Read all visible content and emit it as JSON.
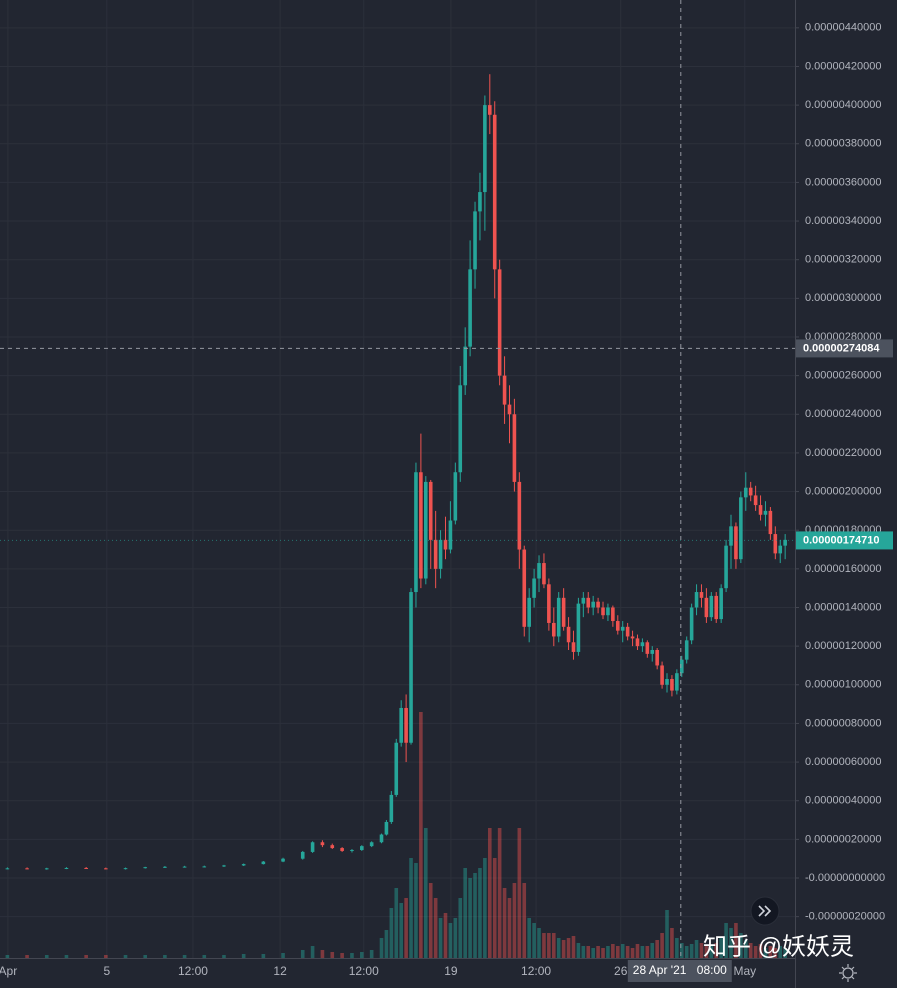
{
  "chart_data": {
    "type": "candlestick",
    "up_color": "#26a69a",
    "down_color": "#ef5350",
    "grid": true,
    "xlim": [
      -1.5,
      160
    ],
    "ylim": [
      -4.14e-07,
      4.544e-06
    ],
    "volume_lim": [
      0,
      260
    ],
    "xticks": [
      {
        "value": 0.1,
        "label": "Apr"
      },
      {
        "value": 20.2,
        "label": "5"
      },
      {
        "value": 37.7,
        "label": "12:00"
      },
      {
        "value": 55.4,
        "label": "12"
      },
      {
        "value": 72.4,
        "label": "12:00"
      },
      {
        "value": 90.1,
        "label": "19"
      },
      {
        "value": 107.4,
        "label": "12:00"
      },
      {
        "value": 124.6,
        "label": "26"
      },
      {
        "value": 149.8,
        "label": "May"
      }
    ],
    "yticks": [
      {
        "value": 4.4e-06,
        "label": "0.00000440000"
      },
      {
        "value": 4.2e-06,
        "label": "0.00000420000"
      },
      {
        "value": 4e-06,
        "label": "0.00000400000"
      },
      {
        "value": 3.8e-06,
        "label": "0.00000380000"
      },
      {
        "value": 3.6e-06,
        "label": "0.00000360000"
      },
      {
        "value": 3.4e-06,
        "label": "0.00000340000"
      },
      {
        "value": 3.2e-06,
        "label": "0.00000320000"
      },
      {
        "value": 3e-06,
        "label": "0.00000300000"
      },
      {
        "value": 2.8e-06,
        "label": "0.00000280000"
      },
      {
        "value": 2.6e-06,
        "label": "0.00000260000"
      },
      {
        "value": 2.4e-06,
        "label": "0.00000240000"
      },
      {
        "value": 2.2e-06,
        "label": "0.00000220000"
      },
      {
        "value": 2e-06,
        "label": "0.00000200000"
      },
      {
        "value": 1.8e-06,
        "label": "0.00000180000"
      },
      {
        "value": 1.6e-06,
        "label": "0.00000160000"
      },
      {
        "value": 1.4e-06,
        "label": "0.00000140000"
      },
      {
        "value": 1.2e-06,
        "label": "0.00000120000"
      },
      {
        "value": 1e-06,
        "label": "0.00000100000"
      },
      {
        "value": 8e-07,
        "label": "0.00000080000"
      },
      {
        "value": 6e-07,
        "label": "0.00000060000"
      },
      {
        "value": 4e-07,
        "label": "0.00000040000"
      },
      {
        "value": 2e-07,
        "label": "0.00000020000"
      },
      {
        "value": 0,
        "label": "-0.00000000000"
      },
      {
        "value": -2e-07,
        "label": "-0.00000020000"
      }
    ],
    "x": [
      0,
      4,
      8,
      12,
      16,
      20,
      24,
      28,
      32,
      36,
      40,
      44,
      48,
      52,
      56,
      60,
      62,
      64,
      66,
      68,
      70,
      72,
      74,
      76,
      77,
      78,
      79,
      80,
      81,
      82,
      83,
      84,
      85,
      86,
      87,
      88,
      89,
      90,
      91,
      92,
      93,
      94,
      95,
      96,
      97,
      98,
      99,
      100,
      101,
      102,
      103,
      104,
      105,
      106,
      107,
      108,
      109,
      110,
      111,
      112,
      113,
      114,
      115,
      116,
      117,
      118,
      119,
      120,
      121,
      122,
      123,
      124,
      125,
      126,
      127,
      128,
      129,
      130,
      131,
      132,
      133,
      134,
      135,
      136,
      137,
      138,
      139,
      140,
      141,
      142,
      143,
      144,
      145,
      146,
      147,
      148,
      149,
      150,
      151,
      152,
      153,
      154,
      155,
      156,
      157,
      158
    ],
    "open": [
      5e-08,
      5e-08,
      4.8e-08,
      5e-08,
      5.2e-08,
      5e-08,
      4.8e-08,
      5.1e-08,
      5.6e-08,
      5.8e-08,
      5.9e-08,
      6e-08,
      6.5e-08,
      7.2e-08,
      8.5e-08,
      1e-07,
      1.35e-07,
      1.85e-07,
      1.7e-07,
      1.55e-07,
      1.4e-07,
      1.45e-07,
      1.65e-07,
      1.85e-07,
      2.25e-07,
      2.9e-07,
      4.3e-07,
      7e-07,
      8.8e-07,
      7e-07,
      1.48e-06,
      2.1e-06,
      1.55e-06,
      2.05e-06,
      1.75e-06,
      1.6e-06,
      1.75e-06,
      1.7e-06,
      1.85e-06,
      2.1e-06,
      2.55e-06,
      2.75e-06,
      3.15e-06,
      3.45e-06,
      3.55e-06,
      4e-06,
      3.95e-06,
      3.15e-06,
      2.6e-06,
      2.45e-06,
      2.4e-06,
      2.05e-06,
      1.7e-06,
      1.3e-06,
      1.45e-06,
      1.55e-06,
      1.63e-06,
      1.52e-06,
      1.32e-06,
      1.25e-06,
      1.45e-06,
      1.3e-06,
      1.22e-06,
      1.17e-06,
      1.42e-06,
      1.45e-06,
      1.4e-06,
      1.43e-06,
      1.4e-06,
      1.36e-06,
      1.4e-06,
      1.33e-06,
      1.28e-06,
      1.3e-06,
      1.25e-06,
      1.24e-06,
      1.2e-06,
      1.22e-06,
      1.16e-06,
      1.18e-06,
      1.1e-06,
      1e-06,
      1.03e-06,
      9.7e-07,
      1.06e-06,
      1.13e-06,
      1.23e-06,
      1.4e-06,
      1.48e-06,
      1.45e-06,
      1.35e-06,
      1.46e-06,
      1.34e-06,
      1.5e-06,
      1.72e-06,
      1.82e-06,
      1.65e-06,
      1.97e-06,
      2.02e-06,
      1.98e-06,
      1.93e-06,
      1.88e-06,
      1.9e-06,
      1.78e-06,
      1.68e-06,
      1.72e-06
    ],
    "high": [
      5.5e-08,
      5.5e-08,
      5.3e-08,
      5.6e-08,
      5.7e-08,
      5.4e-08,
      5.4e-08,
      5.8e-08,
      6.2e-08,
      6.3e-08,
      6.4e-08,
      6.8e-08,
      7.5e-08,
      8.8e-08,
      1.05e-07,
      1.4e-07,
      1.9e-07,
      1.95e-07,
      1.78e-07,
      1.6e-07,
      1.5e-07,
      1.7e-07,
      1.9e-07,
      2.3e-07,
      3e-07,
      4.5e-07,
      7.2e-07,
      9.2e-07,
      9.5e-07,
      1.5e-06,
      2.15e-06,
      2.3e-06,
      2.08e-06,
      2.06e-06,
      1.9e-06,
      1.8e-06,
      1.87e-06,
      1.95e-06,
      2.15e-06,
      2.65e-06,
      2.85e-06,
      3.3e-06,
      3.5e-06,
      3.65e-06,
      4.05e-06,
      4.16e-06,
      4.02e-06,
      3.2e-06,
      2.7e-06,
      2.55e-06,
      2.48e-06,
      2.1e-06,
      1.72e-06,
      1.5e-06,
      1.6e-06,
      1.67e-06,
      1.68e-06,
      1.55e-06,
      1.4e-06,
      1.48e-06,
      1.5e-06,
      1.35e-06,
      1.28e-06,
      1.45e-06,
      1.48e-06,
      1.48e-06,
      1.46e-06,
      1.45e-06,
      1.43e-06,
      1.42e-06,
      1.41e-06,
      1.36e-06,
      1.33e-06,
      1.32e-06,
      1.28e-06,
      1.26e-06,
      1.24e-06,
      1.23e-06,
      1.2e-06,
      1.19e-06,
      1.12e-06,
      1.06e-06,
      1.05e-06,
      1.08e-06,
      1.15e-06,
      1.25e-06,
      1.42e-06,
      1.52e-06,
      1.52e-06,
      1.5e-06,
      1.48e-06,
      1.48e-06,
      1.52e-06,
      1.75e-06,
      1.88e-06,
      1.84e-06,
      2e-06,
      2.1e-06,
      2.05e-06,
      2.03e-06,
      1.98e-06,
      1.95e-06,
      1.92e-06,
      1.82e-06,
      1.75e-06,
      1.78e-06
    ],
    "low": [
      4.5e-08,
      4.5e-08,
      4.3e-08,
      4.6e-08,
      4.8e-08,
      4.5e-08,
      4.4e-08,
      4.9e-08,
      5.2e-08,
      5.4e-08,
      5.5e-08,
      5.7e-08,
      6.2e-08,
      7e-08,
      8.2e-08,
      9.5e-08,
      1.3e-07,
      1.6e-07,
      1.5e-07,
      1.35e-07,
      1.32e-07,
      1.4e-07,
      1.6e-07,
      1.8e-07,
      2.2e-07,
      2.8e-07,
      4.2e-07,
      6.8e-07,
      6e-07,
      6.9e-07,
      1.4e-06,
      1.5e-06,
      1.52e-06,
      1.6e-06,
      1.5e-06,
      1.55e-06,
      1.65e-06,
      1.68e-06,
      1.83e-06,
      2.05e-06,
      2.5e-06,
      2.7e-06,
      3.05e-06,
      3.3e-06,
      3.35e-06,
      3.85e-06,
      3e-06,
      2.55e-06,
      2.35e-06,
      2.25e-06,
      2e-06,
      1.6e-06,
      1.25e-06,
      1.22e-06,
      1.4e-06,
      1.48e-06,
      1.5e-06,
      1.28e-06,
      1.2e-06,
      1.22e-06,
      1.28e-06,
      1.18e-06,
      1.13e-06,
      1.15e-06,
      1.35e-06,
      1.37e-06,
      1.36e-06,
      1.37e-06,
      1.34e-06,
      1.33e-06,
      1.3e-06,
      1.26e-06,
      1.22e-06,
      1.23e-06,
      1.2e-06,
      1.18e-06,
      1.17e-06,
      1.14e-06,
      1.12e-06,
      1.08e-06,
      9.8e-07,
      9.6e-07,
      9.4e-07,
      9.5e-07,
      1.04e-06,
      1.11e-06,
      1.21e-06,
      1.36e-06,
      1.4e-06,
      1.32e-06,
      1.33e-06,
      1.32e-06,
      1.32e-06,
      1.48e-06,
      1.6e-06,
      1.6e-06,
      1.63e-06,
      1.9e-06,
      1.95e-06,
      1.9e-06,
      1.85e-06,
      1.82e-06,
      1.75e-06,
      1.65e-06,
      1.63e-06,
      1.65e-06
    ],
    "close": [
      5e-08,
      4.8e-08,
      5e-08,
      5.2e-08,
      5e-08,
      4.8e-08,
      5.1e-08,
      5.6e-08,
      5.8e-08,
      5.9e-08,
      6e-08,
      6.5e-08,
      7.2e-08,
      8.5e-08,
      1e-07,
      1.35e-07,
      1.85e-07,
      1.7e-07,
      1.55e-07,
      1.4e-07,
      1.45e-07,
      1.65e-07,
      1.85e-07,
      2.25e-07,
      2.9e-07,
      4.3e-07,
      7e-07,
      8.8e-07,
      7e-07,
      1.48e-06,
      2.1e-06,
      1.55e-06,
      2.05e-06,
      1.75e-06,
      1.6e-06,
      1.75e-06,
      1.7e-06,
      1.85e-06,
      2.1e-06,
      2.55e-06,
      2.75e-06,
      3.15e-06,
      3.45e-06,
      3.55e-06,
      4e-06,
      3.95e-06,
      3.15e-06,
      2.6e-06,
      2.45e-06,
      2.4e-06,
      2.05e-06,
      1.7e-06,
      1.3e-06,
      1.45e-06,
      1.55e-06,
      1.63e-06,
      1.52e-06,
      1.32e-06,
      1.25e-06,
      1.45e-06,
      1.3e-06,
      1.22e-06,
      1.17e-06,
      1.42e-06,
      1.45e-06,
      1.4e-06,
      1.43e-06,
      1.4e-06,
      1.36e-06,
      1.4e-06,
      1.33e-06,
      1.28e-06,
      1.3e-06,
      1.25e-06,
      1.24e-06,
      1.2e-06,
      1.22e-06,
      1.16e-06,
      1.18e-06,
      1.1e-06,
      1e-06,
      1.03e-06,
      9.7e-07,
      1.06e-06,
      1.13e-06,
      1.23e-06,
      1.4e-06,
      1.48e-06,
      1.45e-06,
      1.35e-06,
      1.46e-06,
      1.34e-06,
      1.5e-06,
      1.72e-06,
      1.82e-06,
      1.65e-06,
      1.97e-06,
      2.02e-06,
      1.98e-06,
      1.93e-06,
      1.88e-06,
      1.9e-06,
      1.78e-06,
      1.68e-06,
      1.72e-06,
      1.75e-06
    ],
    "volume": [
      3,
      3,
      3,
      3,
      3,
      3,
      3,
      3,
      3,
      3,
      3,
      3,
      4,
      4,
      5,
      8,
      12,
      8,
      6,
      5,
      5,
      6,
      8,
      20,
      28,
      50,
      70,
      55,
      60,
      100,
      95,
      246,
      130,
      75,
      60,
      40,
      45,
      35,
      40,
      60,
      90,
      80,
      85,
      90,
      100,
      130,
      100,
      130,
      70,
      60,
      75,
      130,
      75,
      40,
      35,
      30,
      25,
      25,
      25,
      20,
      18,
      20,
      22,
      15,
      12,
      12,
      10,
      12,
      10,
      12,
      14,
      12,
      14,
      12,
      10,
      14,
      12,
      12,
      15,
      18,
      25,
      48,
      30,
      20,
      15,
      12,
      14,
      18,
      15,
      12,
      12,
      15,
      20,
      35,
      30,
      35,
      25,
      18,
      15,
      12,
      14,
      10,
      12,
      10,
      12,
      10
    ],
    "crosshair": {
      "x": 136.8,
      "x_label": "28 Apr '21",
      "time_label": "08:00",
      "y": 2.74084e-06,
      "y_label": "0.00000274084"
    },
    "last_price": {
      "value": 1.7471e-06,
      "label": "0.00000174710"
    },
    "watermark": "知乎 @妖妖灵"
  }
}
